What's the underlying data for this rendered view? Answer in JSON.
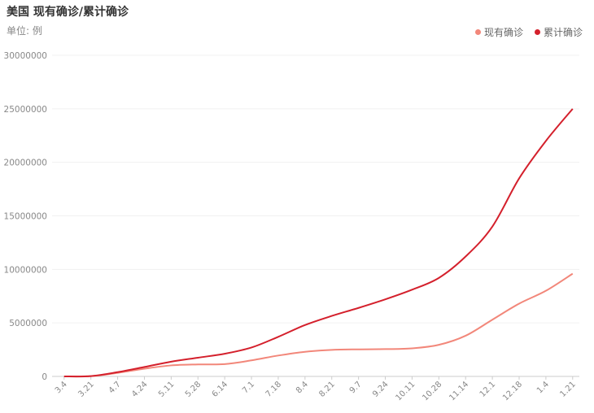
{
  "title": "美国 现有确诊/累计确诊",
  "unit": "单位: 例",
  "colors": {
    "existing": "#f2877a",
    "cumulative": "#d4202c"
  },
  "chart_data": {
    "type": "line",
    "x": [
      "3.4",
      "3.21",
      "4.7",
      "4.24",
      "5.11",
      "5.28",
      "6.14",
      "7.1",
      "7.18",
      "8.4",
      "8.21",
      "9.7",
      "9.24",
      "10.11",
      "10.28",
      "11.14",
      "12.1",
      "12.18",
      "1.4",
      "1.21"
    ],
    "ylim": [
      0,
      30000000
    ],
    "yticks": [
      0,
      5000000,
      10000000,
      15000000,
      20000000,
      25000000,
      30000000
    ],
    "legend_position": "top-right",
    "grid": true,
    "series": [
      {
        "name": "现有确诊",
        "color": "#f2877a",
        "values": [
          100,
          25000,
          330000,
          720000,
          1030000,
          1120000,
          1150000,
          1500000,
          1950000,
          2300000,
          2480000,
          2530000,
          2550000,
          2620000,
          2950000,
          3800000,
          5300000,
          6800000,
          8000000,
          9600000
        ]
      },
      {
        "name": "累计确诊",
        "color": "#d4202c",
        "values": [
          150,
          30000,
          400000,
          880000,
          1380000,
          1750000,
          2120000,
          2700000,
          3700000,
          4800000,
          5650000,
          6400000,
          7200000,
          8100000,
          9200000,
          11200000,
          14000000,
          18500000,
          22000000,
          25000000
        ]
      }
    ]
  }
}
